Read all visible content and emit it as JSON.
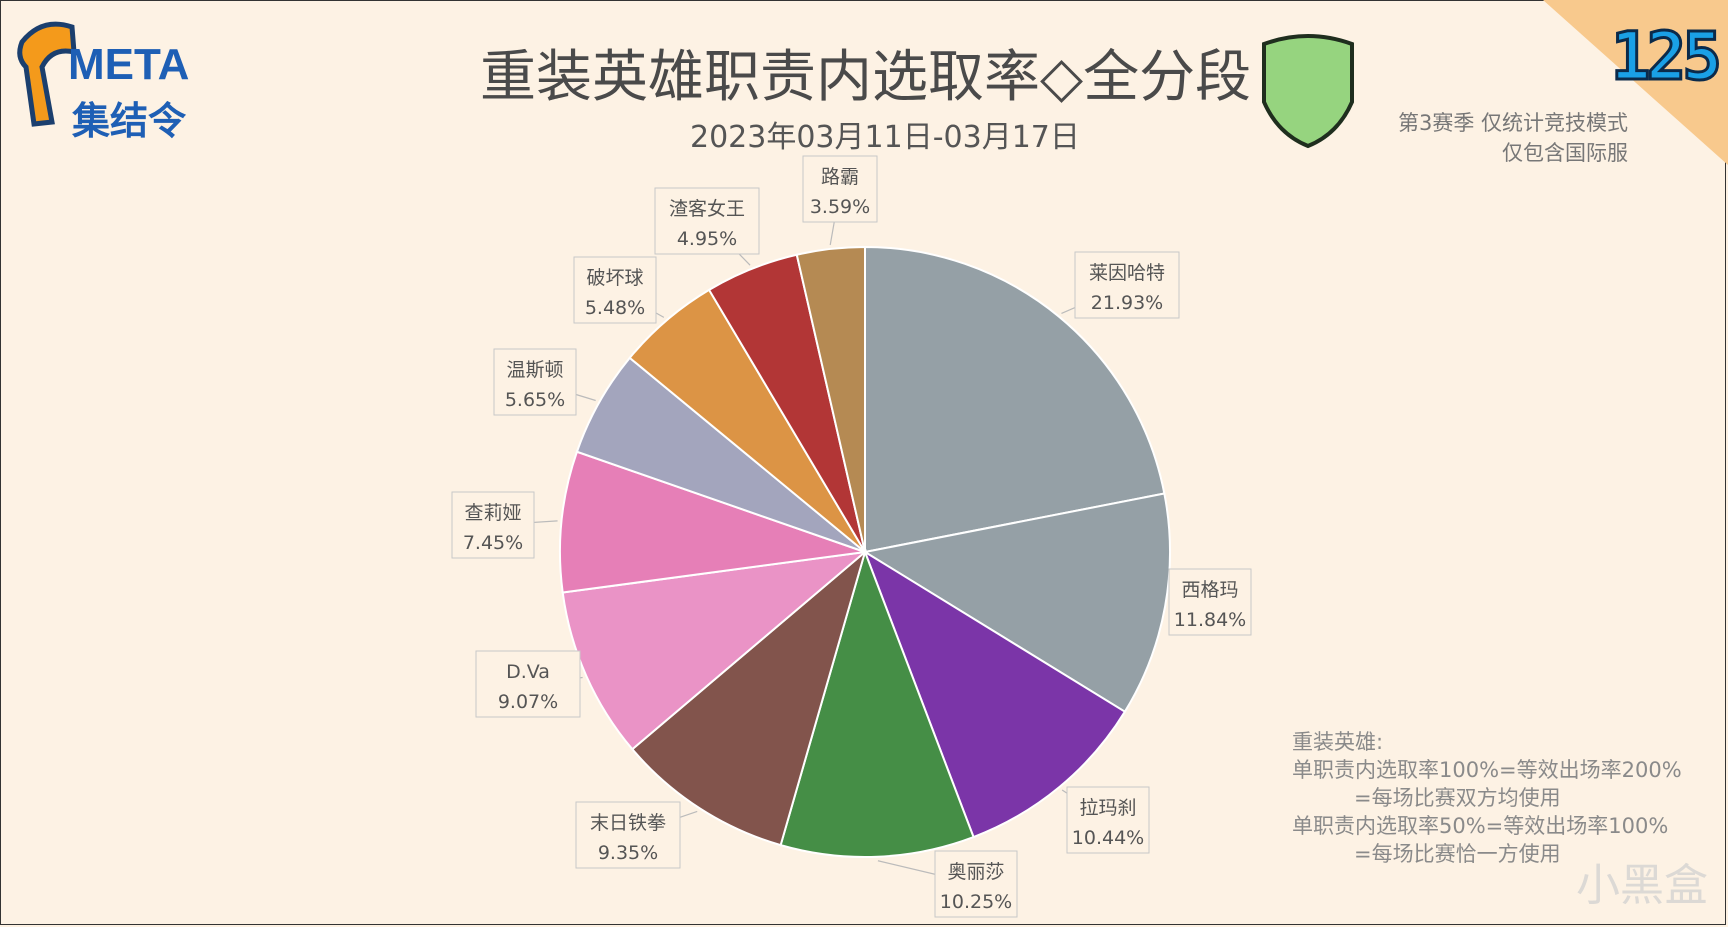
{
  "header": {
    "logo_line1": "META",
    "logo_line2": "集结令",
    "title": "重装英雄职责内选取率◇全分段",
    "subtitle": "2023年03月11日-03月17日",
    "corner_number": "125",
    "note_top": [
      "第3赛季 仅统计竞技模式",
      "仅包含国际服"
    ]
  },
  "footnote": {
    "line1": "重装英雄:",
    "line2": "单职责内选取率100%=等效出场率200%",
    "line3": "=每场比赛双方均使用",
    "line4": "单职责内选取率50%=等效出场率100%",
    "line5": "=每场比赛恰一方使用"
  },
  "watermark": "小黑盒",
  "colors": {
    "background": "#fdf2e4",
    "rank_shield": "#96d47f"
  },
  "chart_data": {
    "type": "pie",
    "title": "重装英雄职责内选取率◇全分段",
    "subtitle": "2023年03月11日-03月17日",
    "slices": [
      {
        "name": "莱因哈特",
        "value": 21.93,
        "label": "21.93%",
        "color": "#95a0a6"
      },
      {
        "name": "西格玛",
        "value": 11.84,
        "label": "11.84%",
        "color": "#95a0a6"
      },
      {
        "name": "拉玛刹",
        "value": 10.44,
        "label": "10.44%",
        "color": "#7b35a8"
      },
      {
        "name": "奥丽莎",
        "value": 10.25,
        "label": "10.25%",
        "color": "#458e46"
      },
      {
        "name": "末日铁拳",
        "value": 9.35,
        "label": "9.35%",
        "color": "#82544c"
      },
      {
        "name": "D.Va",
        "value": 9.07,
        "label": "9.07%",
        "color": "#ea93c6"
      },
      {
        "name": "查莉娅",
        "value": 7.45,
        "label": "7.45%",
        "color": "#e67fb7"
      },
      {
        "name": "温斯顿",
        "value": 5.65,
        "label": "5.65%",
        "color": "#a3a5bd"
      },
      {
        "name": "破坏球",
        "value": 5.48,
        "label": "5.48%",
        "color": "#dc9445"
      },
      {
        "name": "渣客女王",
        "value": 4.95,
        "label": "4.95%",
        "color": "#b23636"
      },
      {
        "name": "路霸",
        "value": 3.59,
        "label": "3.59%",
        "color": "#b58a53"
      }
    ]
  }
}
